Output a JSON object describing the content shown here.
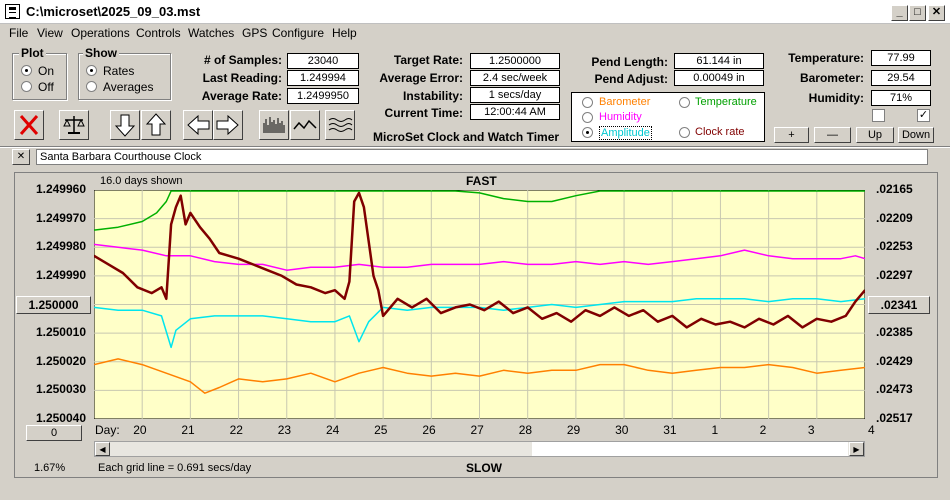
{
  "window": {
    "title": "C:\\microset\\2025_09_03.mst"
  },
  "menu": [
    "File",
    "View",
    "Operations",
    "Controls",
    "Watches",
    "GPS",
    "Configure",
    "Help"
  ],
  "plot": {
    "title": "Plot",
    "on": "On",
    "off": "Off"
  },
  "show": {
    "title": "Show",
    "rates": "Rates",
    "averages": "Averages"
  },
  "stats": {
    "samples_label": "# of Samples:",
    "samples": "23040",
    "last_label": "Last Reading:",
    "last": "1.249994",
    "avg_label": "Average Rate:",
    "avg": "1.2499950"
  },
  "rates": {
    "target_label": "Target Rate:",
    "target": "1.2500000",
    "error_label": "Average Error:",
    "error": "2.4 sec/week",
    "instab_label": "Instability:",
    "instab": "1 secs/day",
    "time_label": "Current Time:",
    "time": "12:00:44 AM",
    "subtitle": "MicroSet Clock and Watch Timer"
  },
  "pend": {
    "length_label": "Pend Length:",
    "length": "61.144 in",
    "adjust_label": "Pend Adjust:",
    "adjust": "0.00049 in"
  },
  "legend": {
    "barometer": "Barometer",
    "temperature": "Temperature",
    "humidity": "Humidity",
    "amplitude": "Amplitude",
    "clock_rate": "Clock rate"
  },
  "env": {
    "temp_label": "Temperature:",
    "temp": "77.99",
    "baro_label": "Barometer:",
    "baro": "29.54",
    "hum_label": "Humidity:",
    "hum": "71%",
    "check_right": "✓"
  },
  "adjust_buttons": {
    "plus": "+",
    "minus": "—",
    "up": "Up",
    "down": "Down"
  },
  "clock_name": "Santa Barbara Courthouse Clock",
  "close_x": "✕",
  "colors": {
    "plot_bg": "#ffffc8",
    "clock_rate": "#800000",
    "temperature": "#00b000",
    "humidity": "#ff00ff",
    "amplitude": "#00e5ee",
    "barometer": "#ff8000"
  },
  "chart_data": {
    "type": "line",
    "top_label": "FAST",
    "bottom_label": "SLOW",
    "days_shown": "16.0 days shown",
    "grid_caption": "Each grid line = 0.691 secs/day",
    "left_axis": [
      "1.249960",
      "1.249970",
      "1.249980",
      "1.249990",
      "1.250000",
      "1.250010",
      "1.250020",
      "1.250030",
      "1.250040"
    ],
    "left_axis_button": "1.250000",
    "right_axis": [
      ".02165",
      ".02209",
      ".02253",
      ".02297",
      ".02341",
      ".02385",
      ".02429",
      ".02473",
      ".02517"
    ],
    "right_axis_button": ".02341",
    "x_label": "Day:",
    "x_days": [
      "20",
      "21",
      "22",
      "23",
      "24",
      "25",
      "26",
      "27",
      "28",
      "29",
      "30",
      "31",
      "1",
      "2",
      "3",
      "4"
    ],
    "x_range": [
      19.0,
      35.0
    ],
    "bottom_left_button": "0",
    "percent": "1.67%",
    "ylim": [
      1.24996,
      1.25004
    ],
    "series": [
      {
        "key": "temperature",
        "x": [
          19.0,
          19.5,
          20.0,
          20.3,
          20.5,
          20.6,
          20.8,
          21.0,
          21.5,
          22.0,
          22.5,
          23.0,
          23.5,
          24.0,
          24.5,
          25.0,
          25.5,
          26.0,
          26.5,
          27.0,
          27.5,
          28.0,
          28.5,
          29.0,
          29.5,
          30.0,
          30.5,
          31.0,
          32.0,
          33.0,
          34.0,
          35.0
        ],
        "y": [
          1.249974,
          1.249973,
          1.249971,
          1.249968,
          1.249964,
          1.24996,
          1.24996,
          1.24996,
          1.24996,
          1.24996,
          1.24996,
          1.24996,
          1.24996,
          1.24996,
          1.24996,
          1.24996,
          1.24996,
          1.24996,
          1.24996,
          1.249961,
          1.249963,
          1.249964,
          1.249964,
          1.249962,
          1.24996,
          1.24996,
          1.24996,
          1.24996,
          1.24996,
          1.24996,
          1.24996,
          1.24996
        ]
      },
      {
        "key": "humidity",
        "x": [
          19.0,
          19.5,
          20.0,
          20.5,
          21.0,
          21.5,
          22.0,
          22.5,
          23.0,
          23.5,
          24.0,
          24.5,
          25.0,
          25.5,
          26.0,
          26.5,
          27.0,
          27.5,
          28.0,
          28.5,
          29.0,
          29.5,
          30.0,
          30.5,
          31.0,
          31.5,
          32.0,
          32.5,
          33.0,
          33.5,
          34.0,
          34.5,
          34.8,
          35.0
        ],
        "y": [
          1.249979,
          1.24998,
          1.249981,
          1.249983,
          1.249983,
          1.249985,
          1.249986,
          1.249986,
          1.249988,
          1.249987,
          1.249987,
          1.249986,
          1.249987,
          1.249987,
          1.249986,
          1.249986,
          1.249986,
          1.249985,
          1.249986,
          1.249986,
          1.249985,
          1.249986,
          1.249985,
          1.249986,
          1.249985,
          1.249984,
          1.249983,
          1.249981,
          1.249983,
          1.249984,
          1.249984,
          1.249984,
          1.249983,
          1.249984
        ]
      },
      {
        "key": "amplitude",
        "x": [
          19.0,
          19.5,
          20.0,
          20.4,
          20.6,
          20.7,
          21.0,
          21.5,
          22.0,
          22.5,
          23.0,
          23.5,
          24.0,
          24.3,
          24.5,
          24.7,
          25.0,
          25.5,
          26.0,
          26.5,
          27.0,
          27.5,
          28.0,
          28.5,
          29.0,
          29.5,
          30.0,
          30.5,
          31.0,
          31.5,
          32.0,
          32.5,
          33.0,
          33.5,
          34.0,
          34.5,
          35.0
        ],
        "y": [
          1.250001,
          1.250002,
          1.250002,
          1.250004,
          1.250015,
          1.250009,
          1.250005,
          1.250004,
          1.250004,
          1.250004,
          1.250005,
          1.250006,
          1.250006,
          1.250004,
          1.250013,
          1.250006,
          1.250001,
          1.250002,
          1.250001,
          1.250001,
          1.250001,
          1.250002,
          1.250001,
          1.25,
          1.250001,
          1.25,
          1.249999,
          1.249999,
          1.249999,
          1.249998,
          1.249998,
          1.249998,
          1.249999,
          1.249998,
          1.249998,
          1.249999,
          1.249998
        ]
      },
      {
        "key": "barometer",
        "x": [
          19.0,
          19.5,
          20.0,
          20.5,
          21.0,
          21.3,
          21.6,
          22.0,
          22.5,
          23.0,
          23.5,
          24.0,
          24.5,
          25.0,
          25.5,
          26.0,
          26.5,
          27.0,
          27.5,
          28.0,
          28.5,
          29.0,
          29.5,
          30.0,
          30.5,
          31.0,
          31.5,
          32.0,
          32.5,
          33.0,
          33.5,
          34.0,
          34.5,
          35.0
        ],
        "y": [
          1.250021,
          1.250019,
          1.250021,
          1.250024,
          1.250027,
          1.250031,
          1.250029,
          1.250026,
          1.250027,
          1.250026,
          1.250024,
          1.250027,
          1.250024,
          1.250022,
          1.250024,
          1.250025,
          1.250024,
          1.250025,
          1.250023,
          1.250024,
          1.250023,
          1.250023,
          1.250021,
          1.250021,
          1.250023,
          1.250024,
          1.250023,
          1.250022,
          1.250022,
          1.250021,
          1.250022,
          1.250024,
          1.250023,
          1.250022
        ]
      },
      {
        "key": "clock_rate",
        "x": [
          19.0,
          19.3,
          19.6,
          19.9,
          20.2,
          20.4,
          20.5,
          20.6,
          20.7,
          20.8,
          20.9,
          21.0,
          21.2,
          21.4,
          21.6,
          21.8,
          22.0,
          22.3,
          22.6,
          22.9,
          23.2,
          23.5,
          23.8,
          24.0,
          24.2,
          24.3,
          24.4,
          24.5,
          24.6,
          24.7,
          24.8,
          24.9,
          25.0,
          25.3,
          25.6,
          25.9,
          26.2,
          26.5,
          26.8,
          27.1,
          27.4,
          27.7,
          28.0,
          28.3,
          28.6,
          28.9,
          29.2,
          29.5,
          29.8,
          30.1,
          30.4,
          30.7,
          31.0,
          31.3,
          31.6,
          31.9,
          32.2,
          32.5,
          32.8,
          33.1,
          33.4,
          33.7,
          34.0,
          34.3,
          34.6,
          34.8,
          35.0
        ],
        "y": [
          1.249983,
          1.249986,
          1.249989,
          1.249994,
          1.249996,
          1.249994,
          1.249998,
          1.249972,
          1.249966,
          1.249962,
          1.249972,
          1.249968,
          1.249973,
          1.249977,
          1.249982,
          1.249983,
          1.249984,
          1.249986,
          1.249988,
          1.24999,
          1.249993,
          1.249994,
          1.249996,
          1.249995,
          1.249998,
          1.249992,
          1.249964,
          1.249961,
          1.249966,
          1.249978,
          1.24999,
          1.249995,
          1.250004,
          1.249998,
          1.250001,
          1.249998,
          1.250003,
          1.250001,
          1.25,
          1.250002,
          1.249999,
          1.250003,
          1.250001,
          1.250005,
          1.250003,
          1.250006,
          1.250002,
          1.250004,
          1.250001,
          1.250004,
          1.250002,
          1.250006,
          1.250004,
          1.250008,
          1.250005,
          1.250007,
          1.250006,
          1.250008,
          1.250005,
          1.250007,
          1.250004,
          1.250008,
          1.250005,
          1.250006,
          1.250004,
          1.249999,
          1.249995
        ]
      }
    ]
  }
}
